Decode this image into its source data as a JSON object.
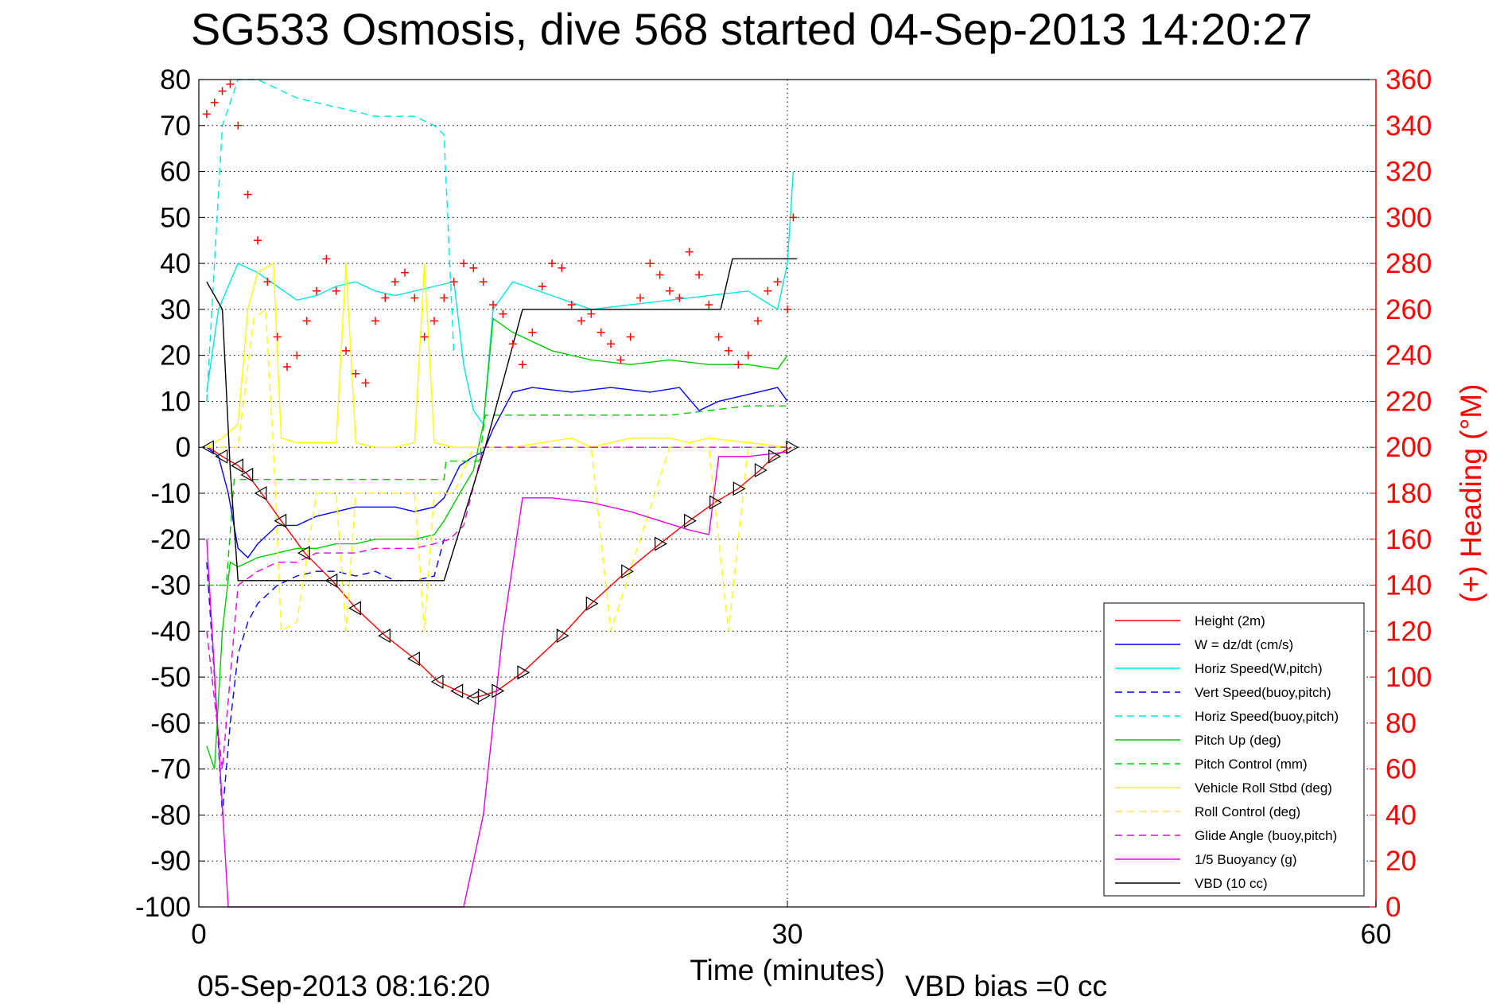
{
  "chart_data": {
    "type": "line",
    "title": "SG533 Osmosis, dive 568 started 04-Sep-2013 14:20:27",
    "xlabel": "Time (minutes)",
    "ylabel": "",
    "y2label": "(+) Heading (°M)",
    "xlim": [
      0,
      60
    ],
    "ylim": [
      -100,
      80
    ],
    "y2lim": [
      0,
      360
    ],
    "xticks": [
      "0",
      "30",
      "60"
    ],
    "yticks": [
      "80",
      "70",
      "60",
      "50",
      "40",
      "30",
      "20",
      "10",
      "0",
      "-10",
      "-20",
      "-30",
      "-40",
      "-50",
      "-60",
      "-70",
      "-80",
      "-90",
      "-100"
    ],
    "y2ticks": [
      "360",
      "340",
      "320",
      "300",
      "280",
      "260",
      "240",
      "220",
      "200",
      "180",
      "160",
      "140",
      "120",
      "100",
      "80",
      "60",
      "40",
      "20",
      "0"
    ],
    "grid": true,
    "legend_position": "lower-right",
    "footer_date": "05-Sep-2013 08:16:20",
    "footer_bias": "VBD bias =0 cc",
    "series": [
      {
        "name": "Height (2m)",
        "color": "#ff0000",
        "dash": "solid",
        "x": [
          0.5,
          1.2,
          2.0,
          2.5,
          3.2,
          4.2,
          5.4,
          6.8,
          8.0,
          9.5,
          11.0,
          12.2,
          13.2,
          14.0,
          14.5,
          15.2,
          16.5,
          18.5,
          20.0,
          21.8,
          23.5,
          25.0,
          26.3,
          27.5,
          28.6,
          29.3,
          30.2
        ],
        "y": [
          0,
          -2,
          -4,
          -6,
          -10,
          -16,
          -23,
          -29,
          -35,
          -41,
          -46,
          -51,
          -53,
          -54.5,
          -54,
          -53,
          -49,
          -41,
          -34,
          -27,
          -21,
          -16,
          -12,
          -9,
          -5,
          -2,
          0
        ]
      },
      {
        "name": "W = dz/dt (cm/s)",
        "color": "#0000ff",
        "dash": "solid",
        "x": [
          0.4,
          1.0,
          1.5,
          2.0,
          2.5,
          3.0,
          4.0,
          5.0,
          6.0,
          7.0,
          8.0,
          9.0,
          10.0,
          11.0,
          12.0,
          12.5,
          13.3,
          14.0,
          14.5,
          15.0,
          16.0,
          17.0,
          19.0,
          21.0,
          23.0,
          24.5,
          25.5,
          26.5,
          27.5,
          28.5,
          29.5,
          30.0
        ],
        "y": [
          0,
          -2,
          -10,
          -22,
          -24,
          -21,
          -17,
          -17,
          -15,
          -14,
          -13,
          -13,
          -13,
          -14,
          -13,
          -11,
          -4,
          -2,
          -1,
          4,
          12,
          13,
          12,
          13,
          12,
          13,
          8,
          10,
          11,
          12,
          13,
          10
        ]
      },
      {
        "name": "Horiz Speed(W,pitch)",
        "color": "#00e5e5",
        "dash": "solid",
        "x": [
          0.4,
          1.0,
          1.5,
          2.0,
          3.0,
          4.0,
          5.0,
          6.0,
          7.0,
          8.0,
          9.0,
          10.0,
          11.0,
          12.0,
          13.0,
          13.5,
          14.0,
          14.5,
          15.0,
          16.0,
          18.0,
          20.0,
          22.0,
          24.0,
          26.0,
          28.0,
          29.5,
          30.0,
          30.3
        ],
        "y": [
          12,
          30,
          35,
          40,
          38,
          35,
          32,
          33,
          35,
          36,
          34,
          33,
          34,
          35,
          36,
          18,
          8,
          5,
          30,
          36,
          33,
          30,
          31,
          32,
          33,
          34,
          30,
          40,
          60
        ]
      },
      {
        "name": "Vert Speed(buoy,pitch)",
        "color": "#0000ff",
        "dash": "dashed",
        "x": [
          0.4,
          0.8,
          1.2,
          1.6,
          2.0,
          2.5,
          3.0,
          4.0,
          5.0,
          6.0,
          7.0,
          8.0,
          9.0,
          10.0,
          11.0,
          12.0,
          12.5
        ],
        "y": [
          -25,
          -50,
          -80,
          -60,
          -45,
          -38,
          -34,
          -30,
          -28,
          -27,
          -27,
          -28,
          -27,
          -29,
          -29,
          -28,
          -20
        ]
      },
      {
        "name": "Horiz Speed(buoy,pitch)",
        "color": "#00e5e5",
        "dash": "dashed",
        "x": [
          0.4,
          0.8,
          1.2,
          1.6,
          2.0,
          2.5,
          3.0,
          4.0,
          5.0,
          6.0,
          7.0,
          8.0,
          9.0,
          10.0,
          11.0,
          12.0,
          12.5,
          13.0
        ],
        "y": [
          10,
          40,
          70,
          75,
          80,
          80,
          80,
          78,
          76,
          75,
          74,
          73,
          72,
          72,
          72,
          70,
          68,
          20
        ]
      },
      {
        "name": "Pitch Up (deg)",
        "color": "#00cc00",
        "dash": "solid",
        "x": [
          0.4,
          0.8,
          1.2,
          1.6,
          2.0,
          2.5,
          3.0,
          4.0,
          5.0,
          6.0,
          7.0,
          8.0,
          9.0,
          10.0,
          11.0,
          12.0,
          12.5,
          13.3,
          14.0,
          14.5,
          15.0,
          16.0,
          18.0,
          20.0,
          22.0,
          24.0,
          26.0,
          28.0,
          29.5,
          30.0
        ],
        "y": [
          -65,
          -70,
          -40,
          -25,
          -26,
          -25,
          -24,
          -23,
          -22,
          -22,
          -21,
          -21,
          -20,
          -20,
          -20,
          -19,
          -16,
          -10,
          -5,
          5,
          28,
          25,
          21,
          19,
          18,
          19,
          18,
          18,
          17,
          20
        ]
      },
      {
        "name": "Pitch Control (mm)",
        "color": "#00cc00",
        "dash": "dashed",
        "x": [
          0.4,
          1.4,
          1.8,
          2.3,
          12.5,
          12.6,
          14.3,
          14.6,
          15.5,
          24.0,
          26.0,
          28.0,
          30.0
        ],
        "y": [
          -30,
          -30,
          -7,
          -7,
          -7,
          -3,
          -3,
          7,
          7,
          7,
          8,
          9,
          9
        ]
      },
      {
        "name": "Vehicle Roll Stbd (deg)",
        "color": "#ffff00",
        "dash": "solid",
        "x": [
          0.4,
          1.2,
          2.0,
          2.5,
          3.0,
          3.8,
          4.2,
          5.0,
          6.0,
          7.0,
          7.5,
          8.0,
          9.0,
          10.0,
          11.0,
          11.5,
          12.0,
          13.0,
          14.0,
          16.0,
          19.0,
          20.0,
          22.0,
          24.0,
          25.0,
          26.0,
          28.0,
          30.0
        ],
        "y": [
          0,
          2,
          5,
          30,
          38,
          40,
          2,
          1,
          1,
          1,
          40,
          1,
          0,
          0,
          1,
          40,
          1,
          0,
          0,
          0,
          2,
          0,
          2,
          2,
          1,
          2,
          1,
          0
        ]
      },
      {
        "name": "Roll Control (deg)",
        "color": "#ffff00",
        "dash": "dashed",
        "x": [
          0.4,
          2.0,
          2.8,
          3.4,
          3.8,
          4.2,
          5.0,
          6.0,
          7.0,
          7.5,
          8.0,
          9.0,
          10.0,
          11.0,
          11.5,
          12.0,
          13.0,
          14.0,
          20.0,
          21.0,
          24.0,
          26.0,
          27.0,
          28.0,
          30.0
        ],
        "y": [
          0,
          0,
          28,
          30,
          0,
          -40,
          -38,
          -10,
          -10,
          -40,
          -10,
          -10,
          -10,
          -10,
          -40,
          -10,
          -10,
          0,
          0,
          -40,
          0,
          0,
          -40,
          0,
          0
        ]
      },
      {
        "name": "Glide Angle (buoy,pitch)",
        "color": "#e600e6",
        "dash": "dashed",
        "x": [
          0.4,
          1.2,
          2.0,
          3.0,
          4.0,
          5.0,
          6.0,
          7.0,
          8.0,
          9.0,
          10.0,
          11.0,
          12.0,
          12.8,
          13.5,
          14.5,
          30.0
        ],
        "y": [
          -40,
          -70,
          -30,
          -27,
          -25,
          -25,
          -23,
          -23,
          -23,
          -22,
          -22,
          -22,
          -21,
          -20,
          -17,
          0,
          0
        ]
      },
      {
        "name": "1/5 Buoyancy (g)",
        "color": "#e600e6",
        "dash": "solid",
        "x": [
          0.4,
          1.5,
          13.5,
          14.5,
          15.5,
          16.5,
          18.0,
          20.0,
          22.0,
          23.5,
          25.0,
          26.0,
          26.5,
          28.0,
          30.0
        ],
        "y": [
          -20,
          -100,
          -100,
          -80,
          -40,
          -11,
          -11,
          -12,
          -14,
          -16,
          -18,
          -19,
          -2,
          -2,
          -1
        ]
      },
      {
        "name": "VBD (10 cc)",
        "color": "#000000",
        "dash": "solid",
        "x": [
          0.4,
          1.2,
          1.6,
          2.0,
          12.5,
          14.6,
          16.5,
          26.0,
          26.6,
          27.2,
          30.5
        ],
        "y": [
          36,
          30,
          -5,
          -29,
          -29,
          0,
          30,
          30,
          30,
          41,
          41
        ]
      },
      {
        "name": "Heading",
        "color": "#ff0000",
        "axis": "right",
        "marker": "+",
        "x": [
          0.4,
          0.8,
          1.2,
          1.6,
          2.0,
          2.5,
          3.0,
          3.5,
          4.0,
          4.5,
          5.0,
          5.5,
          6.0,
          6.5,
          7.0,
          7.5,
          8.0,
          8.5,
          9.0,
          9.5,
          10.0,
          10.5,
          11.0,
          11.5,
          12.0,
          12.5,
          13.0,
          13.5,
          14.0,
          14.5,
          15.0,
          15.5,
          16.0,
          16.5,
          17.0,
          17.5,
          18.0,
          18.5,
          19.0,
          19.5,
          20.0,
          20.5,
          21.0,
          21.5,
          22.0,
          22.5,
          23.0,
          23.5,
          24.0,
          24.5,
          25.0,
          25.5,
          26.0,
          26.5,
          27.0,
          27.5,
          28.0,
          28.5,
          29.0,
          29.5,
          30.0,
          30.3
        ],
        "y": [
          345,
          350,
          355,
          358,
          340,
          310,
          290,
          272,
          248,
          235,
          240,
          255,
          268,
          282,
          268,
          242,
          232,
          228,
          255,
          265,
          272,
          276,
          265,
          248,
          255,
          265,
          272,
          280,
          278,
          272,
          262,
          258,
          245,
          236,
          250,
          270,
          280,
          278,
          262,
          255,
          258,
          250,
          245,
          238,
          248,
          265,
          280,
          275,
          268,
          265,
          285,
          275,
          262,
          248,
          242,
          236,
          240,
          255,
          268,
          272,
          260,
          300
        ]
      }
    ]
  }
}
